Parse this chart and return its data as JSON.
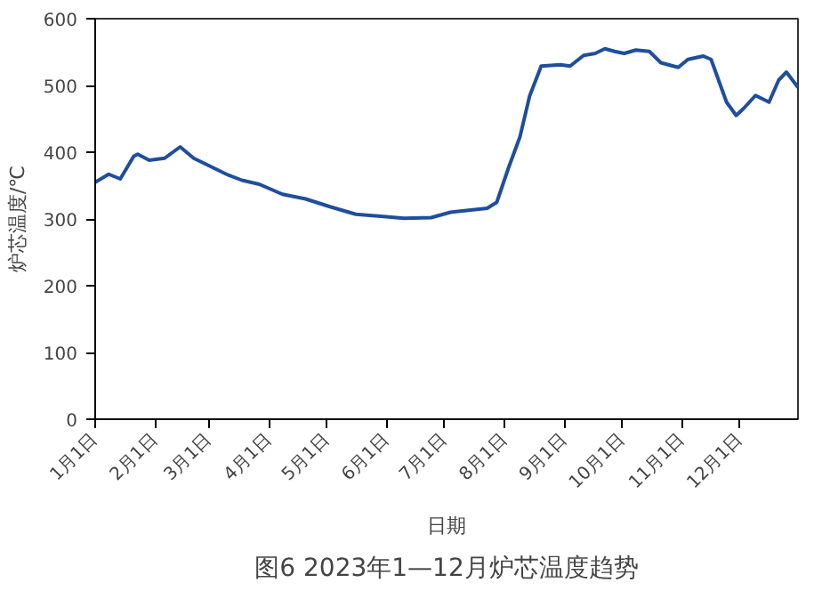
{
  "chart_data": {
    "type": "line",
    "title": "图6 2023年1—12月炉芯温度趋势",
    "xlabel": "日期",
    "ylabel": "炉芯温度/℃",
    "x": [
      "2023-01-01",
      "2023-01-08",
      "2023-01-14",
      "2023-01-21",
      "2023-01-23",
      "2023-01-29",
      "2023-02-06",
      "2023-02-14",
      "2023-02-21",
      "2023-03-10",
      "2023-03-18",
      "2023-03-27",
      "2023-04-08",
      "2023-04-20",
      "2023-05-03",
      "2023-05-16",
      "2023-05-29",
      "2023-06-10",
      "2023-06-24",
      "2023-07-04",
      "2023-07-23",
      "2023-07-28",
      "2023-08-03",
      "2023-08-09",
      "2023-08-14",
      "2023-08-20",
      "2023-08-30",
      "2023-09-04",
      "2023-09-11",
      "2023-09-17",
      "2023-09-22",
      "2023-09-27",
      "2023-10-02",
      "2023-10-08",
      "2023-10-15",
      "2023-10-21",
      "2023-10-30",
      "2023-11-04",
      "2023-11-12",
      "2023-11-16",
      "2023-11-24",
      "2023-11-29",
      "2023-12-03",
      "2023-12-09",
      "2023-12-16",
      "2023-12-21",
      "2023-12-25",
      "2023-12-30",
      "2023-12-31"
    ],
    "series": [
      {
        "color": "#1f4e9c",
        "values": [
          355,
          367,
          360,
          394,
          397,
          388,
          391,
          408,
          391,
          367,
          358,
          352,
          337,
          330,
          318,
          307,
          304,
          301,
          302,
          310,
          316,
          325,
          376,
          423,
          484,
          529,
          531,
          529,
          545,
          548,
          555,
          551,
          548,
          553,
          551,
          534,
          527,
          539,
          544,
          539,
          475,
          455,
          466,
          485,
          475,
          508,
          520,
          501,
          497
        ]
      }
    ],
    "xlim": [
      "2023-01-01",
      "2023-12-31"
    ],
    "xticks": [
      {
        "value": "2023-01-01",
        "label": "1月1日"
      },
      {
        "value": "2023-02-01",
        "label": "2月1日"
      },
      {
        "value": "2023-03-01",
        "label": "3月1日"
      },
      {
        "value": "2023-04-01",
        "label": "4月1日"
      },
      {
        "value": "2023-05-01",
        "label": "5月1日"
      },
      {
        "value": "2023-06-01",
        "label": "6月1日"
      },
      {
        "value": "2023-07-01",
        "label": "7月1日"
      },
      {
        "value": "2023-08-01",
        "label": "8月1日"
      },
      {
        "value": "2023-09-01",
        "label": "9月1日"
      },
      {
        "value": "2023-10-01",
        "label": "10月1日"
      },
      {
        "value": "2023-11-01",
        "label": "11月1日"
      },
      {
        "value": "2023-12-01",
        "label": "12月1日"
      }
    ],
    "ylim": [
      0,
      600
    ],
    "yticks": [
      0,
      100,
      200,
      300,
      400,
      500,
      600
    ],
    "grid": false,
    "marker": "none",
    "line_style": "solid"
  }
}
